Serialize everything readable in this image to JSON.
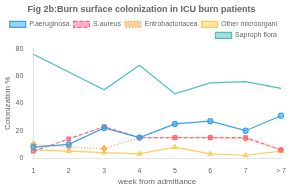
{
  "chart_data": {
    "type": "line",
    "title": "Fig 2b:Burn surface colonization in ICU burn patients",
    "x_label": "week from admittance",
    "y_label": "Colonization %",
    "categories": [
      "1",
      "2",
      "3",
      "4",
      "5",
      "6",
      "7",
      "> 7"
    ],
    "series": [
      {
        "name": "P.aeruginosa",
        "values": [
          8,
          10,
          22,
          15,
          25,
          27,
          20,
          31
        ],
        "line_style": "solid",
        "marker": "circle"
      },
      {
        "name": "S.aureus",
        "values": [
          5,
          14,
          23,
          15,
          15,
          15,
          15,
          6
        ],
        "line_style": "dashed",
        "marker": "square"
      },
      {
        "name": "Entrobactoriacea",
        "values": [
          10,
          8,
          7,
          15,
          15,
          15,
          14,
          6
        ],
        "line_style": "dotted",
        "marker": "diamond"
      },
      {
        "name": "Other microorgani",
        "values": [
          6,
          5,
          4,
          3,
          8,
          3,
          2,
          5
        ],
        "line_style": "solid",
        "marker": "triangle"
      },
      {
        "name": "Saproph flora",
        "values": [
          76,
          63,
          50,
          68,
          47,
          55,
          56,
          51
        ],
        "line_style": "solid",
        "marker": "none"
      }
    ],
    "ylim": [
      0,
      80
    ],
    "yticks": [
      0,
      20,
      40,
      60,
      80
    ],
    "grid": false,
    "legend": "upper right"
  }
}
